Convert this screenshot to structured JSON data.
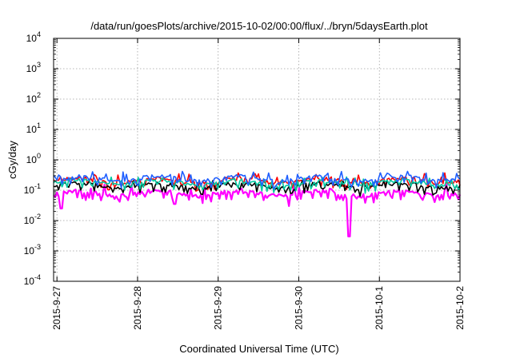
{
  "chart_data": {
    "type": "line",
    "title": "/data/run/goesPlots/archive/2015-10-02/00:00/flux/../bryn/5daysEarth.plot",
    "xlabel": "Coordinated Universal Time (UTC)",
    "ylabel": "cGy/day",
    "y_scale": "log",
    "ylim": [
      0.0001,
      10000
    ],
    "y_ticks": [
      {
        "value": 0.0001,
        "base": "10",
        "exp": "-4"
      },
      {
        "value": 0.001,
        "base": "10",
        "exp": "-3"
      },
      {
        "value": 0.01,
        "base": "10",
        "exp": "-2"
      },
      {
        "value": 0.1,
        "base": "10",
        "exp": "-1"
      },
      {
        "value": 1,
        "base": "10",
        "exp": "0"
      },
      {
        "value": 10,
        "base": "10",
        "exp": "1"
      },
      {
        "value": 100,
        "base": "10",
        "exp": "2"
      },
      {
        "value": 1000,
        "base": "10",
        "exp": "3"
      },
      {
        "value": 10000,
        "base": "10",
        "exp": "4"
      }
    ],
    "x_ticks": [
      "2015-9-27",
      "2015-9-28",
      "2015-9-29",
      "2015-9-30",
      "2015-10-1",
      "2015-10-2"
    ],
    "xlim": [
      "2015-09-26 23:00",
      "2015-10-02 00:00"
    ],
    "grid": true,
    "legend": "none",
    "series": [
      {
        "color": "#ff00ff",
        "base": 0.075,
        "amp": 0.09,
        "spikes": [
          {
            "x": "2015-09-27 01:20",
            "y": 0.025
          },
          {
            "x": "2015-09-28 11:00",
            "y": 0.035
          },
          {
            "x": "2015-09-29 21:00",
            "y": 0.03
          },
          {
            "x": "2015-09-30 15:00",
            "y": 0.003
          }
        ]
      },
      {
        "color": "#ff0000",
        "base": 0.2,
        "amp": 0.22,
        "spikes": []
      },
      {
        "color": "#000000",
        "base": 0.135,
        "amp": 0.14,
        "spikes": []
      },
      {
        "color": "#00c8a0",
        "base": 0.17,
        "amp": 0.16,
        "spikes": []
      },
      {
        "color": "#1f5fff",
        "base": 0.23,
        "amp": 0.25,
        "spikes": []
      }
    ]
  }
}
